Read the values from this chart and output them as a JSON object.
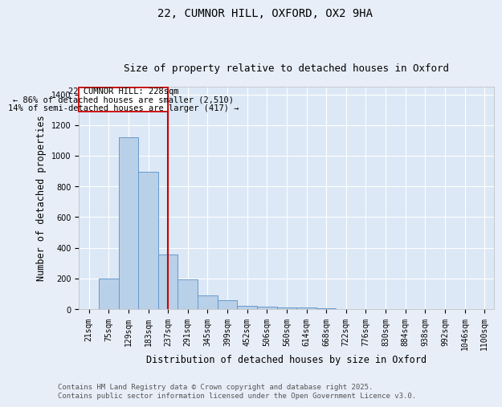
{
  "title1": "22, CUMNOR HILL, OXFORD, OX2 9HA",
  "title2": "Size of property relative to detached houses in Oxford",
  "xlabel": "Distribution of detached houses by size in Oxford",
  "ylabel": "Number of detached properties",
  "bin_labels": [
    "21sqm",
    "75sqm",
    "129sqm",
    "183sqm",
    "237sqm",
    "291sqm",
    "345sqm",
    "399sqm",
    "452sqm",
    "506sqm",
    "560sqm",
    "614sqm",
    "668sqm",
    "722sqm",
    "776sqm",
    "830sqm",
    "884sqm",
    "938sqm",
    "992sqm",
    "1046sqm",
    "1100sqm"
  ],
  "bar_heights": [
    0,
    197,
    1120,
    893,
    357,
    195,
    90,
    57,
    20,
    15,
    10,
    10,
    5,
    0,
    0,
    0,
    0,
    0,
    0,
    0,
    0
  ],
  "bar_color": "#b8d0e8",
  "bar_edgecolor": "#6699cc",
  "bar_linewidth": 0.7,
  "vline_bin_index": 4,
  "vline_color": "#cc0000",
  "annotation_line1": "22 CUMNOR HILL: 228sqm",
  "annotation_line2": "← 86% of detached houses are smaller (2,510)",
  "annotation_line3": "14% of semi-detached houses are larger (417) →",
  "annotation_box_color": "#cc0000",
  "ylim": [
    0,
    1450
  ],
  "yticks": [
    0,
    200,
    400,
    600,
    800,
    1000,
    1200,
    1400
  ],
  "footer_line1": "Contains HM Land Registry data © Crown copyright and database right 2025.",
  "footer_line2": "Contains public sector information licensed under the Open Government Licence v3.0.",
  "bg_color": "#e8eef8",
  "plot_bg_color": "#dce8f5",
  "title_fontsize": 10,
  "subtitle_fontsize": 9,
  "axis_label_fontsize": 8.5,
  "tick_fontsize": 7,
  "footer_fontsize": 6.5,
  "annotation_fontsize": 7.5
}
